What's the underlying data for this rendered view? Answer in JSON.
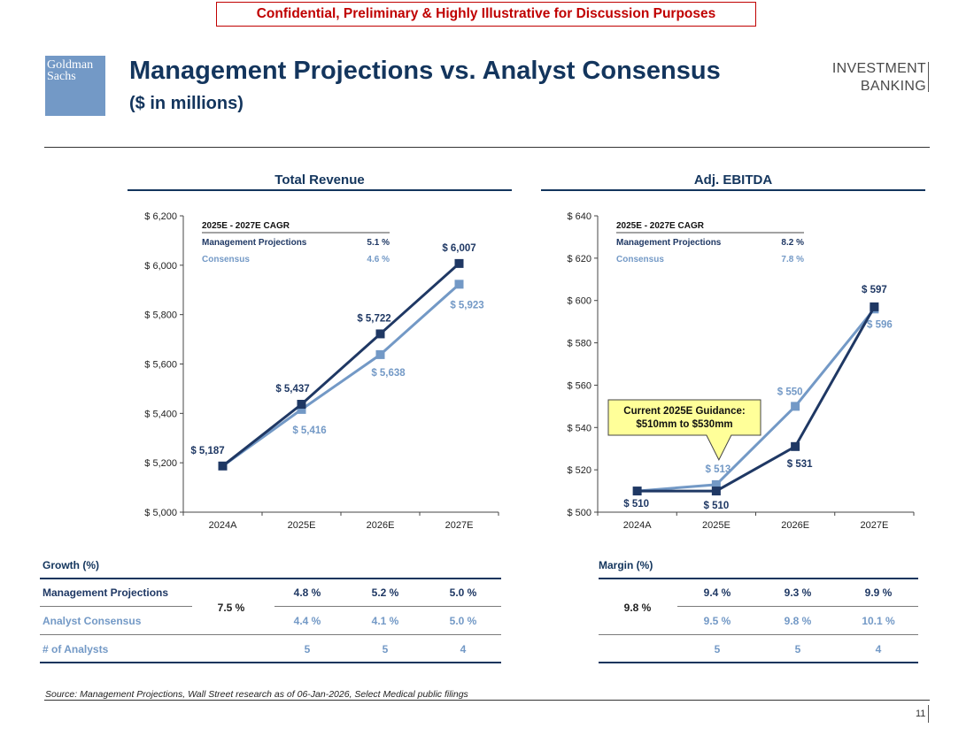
{
  "banner": "Confidential, Preliminary & Highly Illustrative for Discussion Purposes",
  "logo": {
    "line1": "Goldman",
    "line2": "Sachs"
  },
  "title": "Management Projections vs. Analyst Consensus",
  "subtitle": "($ in millions)",
  "ib": {
    "line1": "INVESTMENT",
    "line2": "BANKING"
  },
  "colors": {
    "management": "#1f3864",
    "consensus": "#7399c6",
    "callout": "#ffff99"
  },
  "chart_data": [
    {
      "type": "line",
      "title": "Total Revenue",
      "categories": [
        "2024A",
        "2025E",
        "2026E",
        "2027E"
      ],
      "ylim": [
        5000,
        6200
      ],
      "yticks": [
        5000,
        5200,
        5400,
        5600,
        5800,
        6000,
        6200
      ],
      "ytick_labels": [
        "$ 5,000",
        "$ 5,200",
        "$ 5,400",
        "$ 5,600",
        "$ 5,800",
        "$ 6,000",
        "$ 6,200"
      ],
      "series": [
        {
          "name": "Management Projections",
          "values": [
            5187,
            5437,
            5722,
            6007
          ],
          "labels": [
            "$ 5,187",
            "$ 5,437",
            "$ 5,722",
            "$ 6,007"
          ]
        },
        {
          "name": "Consensus",
          "values": [
            5187,
            5416,
            5638,
            5923
          ],
          "labels": [
            "",
            "$ 5,416",
            "$ 5,638",
            "$ 5,923"
          ]
        }
      ],
      "cagr": {
        "header": "2025E - 2027E CAGR",
        "management": "5.1 %",
        "consensus": "4.6 %"
      }
    },
    {
      "type": "line",
      "title": "Adj. EBITDA",
      "categories": [
        "2024A",
        "2025E",
        "2026E",
        "2027E"
      ],
      "ylim": [
        500,
        640
      ],
      "yticks": [
        500,
        520,
        540,
        560,
        580,
        600,
        620,
        640
      ],
      "ytick_labels": [
        "$ 500",
        "$ 520",
        "$ 540",
        "$ 560",
        "$ 580",
        "$ 600",
        "$ 620",
        "$ 640"
      ],
      "series": [
        {
          "name": "Management Projections",
          "values": [
            510,
            510,
            531,
            597
          ],
          "labels": [
            "$ 510",
            "$ 510",
            "$ 531",
            "$ 597"
          ]
        },
        {
          "name": "Consensus",
          "values": [
            510,
            513,
            550,
            596
          ],
          "labels": [
            "",
            "$ 513",
            "$ 550",
            "$ 596"
          ]
        }
      ],
      "cagr": {
        "header": "2025E - 2027E CAGR",
        "management": "8.2 %",
        "consensus": "7.8 %"
      },
      "annotation": {
        "line1": "Current 2025E Guidance:",
        "line2": "$510mm to $530mm"
      }
    }
  ],
  "growth": {
    "label": "Growth (%)",
    "mgmt_label": "Management Projections",
    "cons_label": "Analyst Consensus",
    "analysts_label": "# of Analysts",
    "base": "7.5 %",
    "mgmt": [
      "4.8 %",
      "5.2 %",
      "5.0 %"
    ],
    "cons": [
      "4.4 %",
      "4.1 %",
      "5.0 %"
    ],
    "analysts": [
      "5",
      "5",
      "4"
    ]
  },
  "margin": {
    "label": "Margin (%)",
    "base": "9.8 %",
    "mgmt": [
      "9.4 %",
      "9.3 %",
      "9.9 %"
    ],
    "cons": [
      "9.5 %",
      "9.8 %",
      "10.1 %"
    ],
    "analysts": [
      "5",
      "5",
      "4"
    ]
  },
  "source": "Source: Management Projections, Wall Street research as of 06-Jan-2026, Select Medical public filings",
  "page_number": "11"
}
